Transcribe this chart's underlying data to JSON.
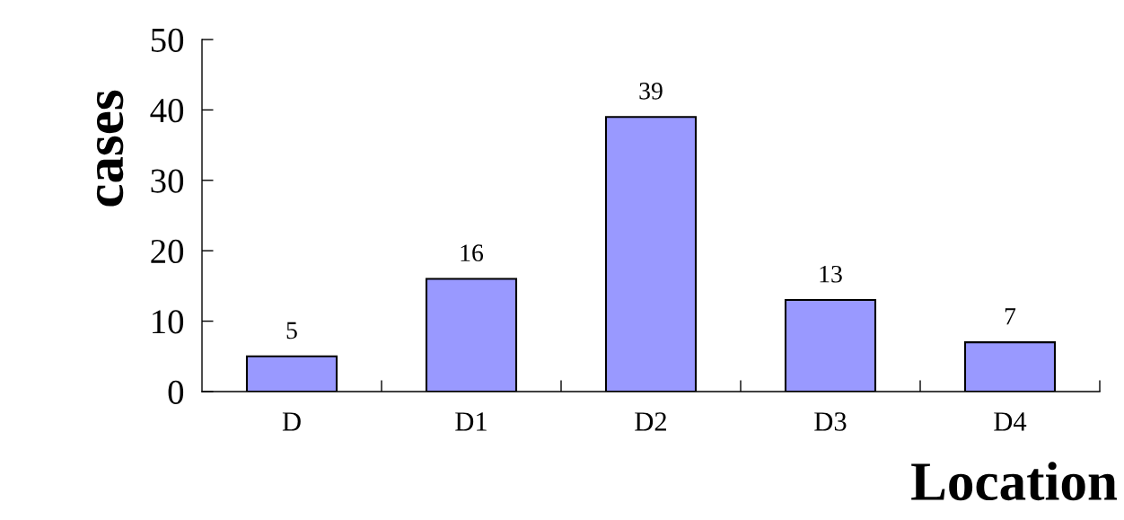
{
  "chart_data": {
    "type": "bar",
    "xlabel": "Location",
    "ylabel": "cases",
    "categories": [
      "D",
      "D1",
      "D2",
      "D3",
      "D4"
    ],
    "values": [
      5,
      16,
      39,
      13,
      7
    ],
    "color": "#9999ff",
    "ylim": [
      0,
      50
    ],
    "yticks": [
      0,
      10,
      20,
      30,
      40,
      50
    ],
    "data_labels": true,
    "grid": false
  }
}
